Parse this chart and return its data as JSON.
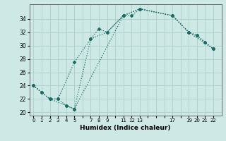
{
  "xlabel": "Humidex (Indice chaleur)",
  "background_color": "#cde8e5",
  "grid_color": "#afd4d0",
  "line_color": "#1a6b63",
  "lines": [
    {
      "x": [
        0,
        1,
        2,
        3,
        4,
        5,
        7,
        8,
        9,
        11,
        12,
        13,
        17,
        19,
        20,
        21,
        22
      ],
      "y": [
        24,
        23,
        22,
        22,
        21,
        20.5,
        31,
        32.5,
        32,
        34.5,
        34.5,
        35.5,
        34.5,
        32,
        31.5,
        30.5,
        29.5
      ]
    },
    {
      "x": [
        0,
        2,
        3,
        5,
        7,
        9,
        11,
        13,
        17,
        19,
        20,
        21,
        22
      ],
      "y": [
        24,
        22,
        22,
        27.5,
        31,
        32,
        34.5,
        35.5,
        34.5,
        32,
        31.5,
        30.5,
        29.5
      ]
    },
    {
      "x": [
        0,
        1,
        2,
        4,
        5,
        11,
        13,
        17,
        19,
        22
      ],
      "y": [
        24,
        23,
        22,
        21,
        20.5,
        34.5,
        35.5,
        34.5,
        32,
        29.5
      ]
    }
  ],
  "yticks": [
    20,
    22,
    24,
    26,
    28,
    30,
    32,
    34
  ],
  "xtick_labels": [
    "0",
    "1",
    "2",
    "3",
    "4",
    "5",
    "",
    "7",
    "8",
    "9",
    "",
    "11",
    "12",
    "13",
    "",
    "",
    "",
    "17",
    "",
    "19",
    "20",
    "21",
    "22"
  ],
  "xtick_positions": [
    0,
    1,
    2,
    3,
    4,
    5,
    6,
    7,
    8,
    9,
    10,
    11,
    12,
    13,
    14,
    15,
    16,
    17,
    18,
    19,
    20,
    21,
    22
  ],
  "ylim": [
    19.5,
    36.2
  ],
  "xlim": [
    -0.5,
    23.0
  ]
}
